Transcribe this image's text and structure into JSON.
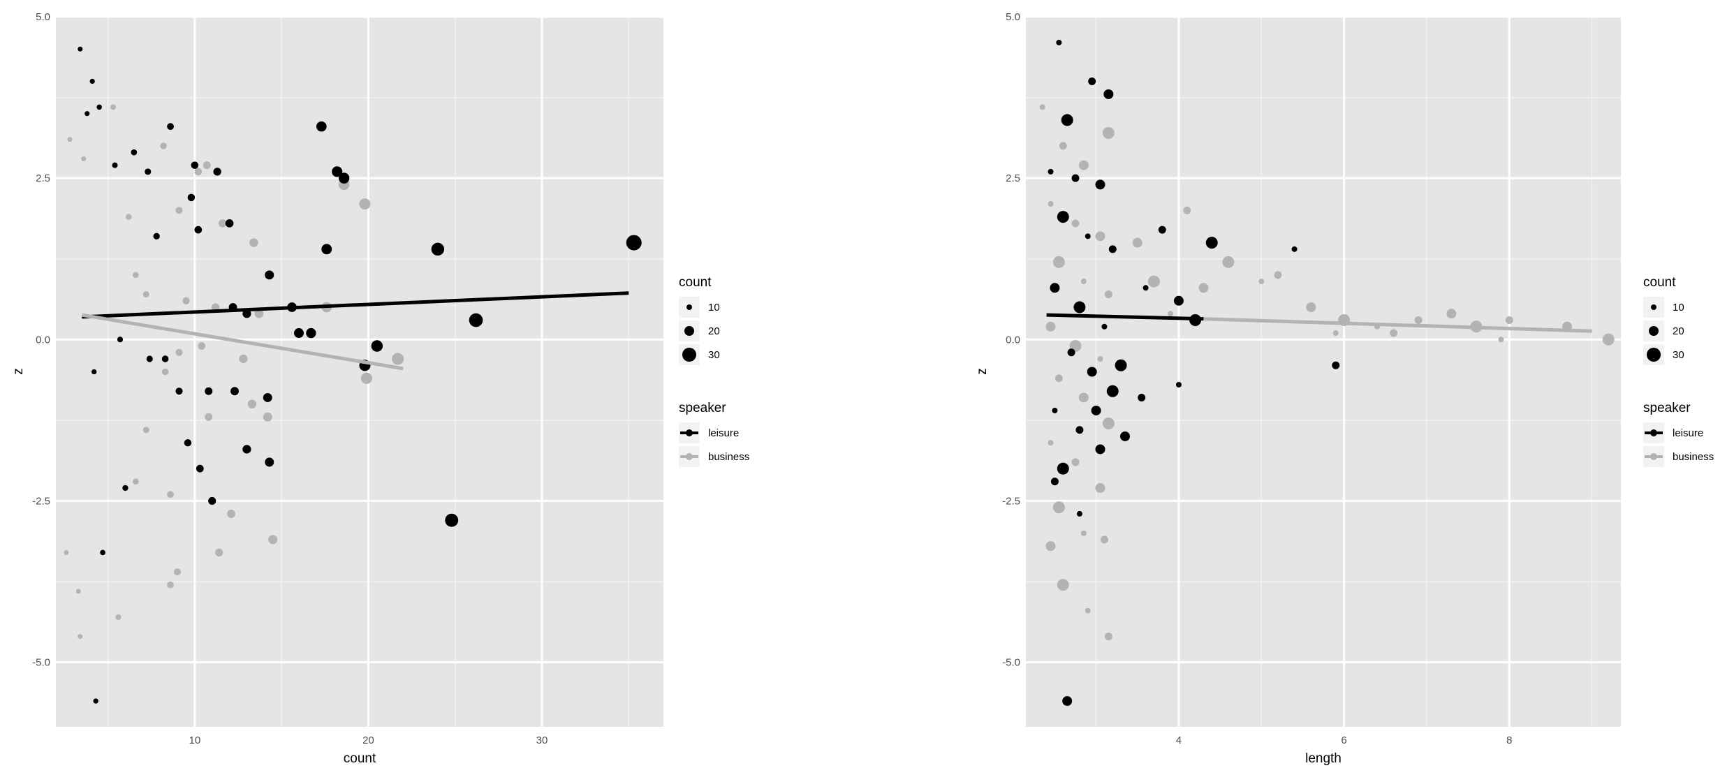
{
  "colors": {
    "leisure": "#000000",
    "business": "#b3b3b3",
    "panel": "#e5e5e5"
  },
  "legend": {
    "size_title": "count",
    "size_labels": [
      "10",
      "20",
      "30"
    ],
    "size_values": [
      10,
      20,
      30
    ],
    "color_title": "speaker",
    "color_labels": [
      "leisure",
      "business"
    ]
  },
  "chart_data": [
    {
      "type": "scatter",
      "xlabel": "count",
      "ylabel": "z",
      "xlim": [
        2.0,
        37.0
      ],
      "ylim": [
        -6.0,
        5.0
      ],
      "xticks": [
        10,
        20,
        30
      ],
      "xtick_labels": [
        "10",
        "20",
        "30"
      ],
      "yticks": [
        -5.0,
        -2.5,
        0.0,
        2.5,
        5.0
      ],
      "ytick_labels": [
        "-5.0",
        "-2.5",
        "0.0",
        "2.5",
        "5.0"
      ],
      "grid": true,
      "legend_position": "right",
      "series": [
        {
          "name": "leisure",
          "points": [
            [
              3.4,
              4.5
            ],
            [
              4.1,
              4.0
            ],
            [
              4.5,
              3.6
            ],
            [
              3.8,
              3.5
            ],
            [
              5.4,
              2.7
            ],
            [
              6.5,
              2.9
            ],
            [
              7.3,
              2.6
            ],
            [
              8.6,
              3.3
            ],
            [
              10.0,
              2.7
            ],
            [
              11.3,
              2.6
            ],
            [
              9.8,
              2.2
            ],
            [
              10.2,
              1.7
            ],
            [
              12.0,
              1.8
            ],
            [
              7.8,
              1.6
            ],
            [
              13.0,
              0.4
            ],
            [
              12.2,
              0.5
            ],
            [
              4.2,
              -0.5
            ],
            [
              5.7,
              0.0
            ],
            [
              7.4,
              -0.3
            ],
            [
              8.3,
              -0.3
            ],
            [
              9.1,
              -0.8
            ],
            [
              10.8,
              -0.8
            ],
            [
              12.3,
              -0.8
            ],
            [
              14.2,
              -0.9
            ],
            [
              11.0,
              -2.5
            ],
            [
              13.0,
              -1.7
            ],
            [
              14.3,
              -1.9
            ],
            [
              6.0,
              -2.3
            ],
            [
              4.7,
              -3.3
            ],
            [
              14.3,
              1.0
            ],
            [
              10.3,
              -2.0
            ],
            [
              9.6,
              -1.6
            ],
            [
              16.0,
              0.1
            ],
            [
              16.7,
              0.1
            ],
            [
              17.3,
              3.3
            ],
            [
              17.6,
              1.4
            ],
            [
              18.2,
              2.6
            ],
            [
              18.6,
              2.5
            ],
            [
              15.6,
              0.5
            ],
            [
              19.8,
              -0.4
            ],
            [
              20.5,
              -0.1
            ],
            [
              24.0,
              1.4
            ],
            [
              24.8,
              -2.8
            ],
            [
              26.2,
              0.3
            ],
            [
              35.3,
              1.5
            ],
            [
              4.3,
              -5.6
            ]
          ]
        },
        {
          "name": "business",
          "points": [
            [
              2.8,
              3.1
            ],
            [
              3.6,
              2.8
            ],
            [
              3.3,
              -3.9
            ],
            [
              5.3,
              3.6
            ],
            [
              6.2,
              1.9
            ],
            [
              8.2,
              3.0
            ],
            [
              9.1,
              2.0
            ],
            [
              10.2,
              2.6
            ],
            [
              10.7,
              2.7
            ],
            [
              11.6,
              1.8
            ],
            [
              13.4,
              1.5
            ],
            [
              6.6,
              1.0
            ],
            [
              7.2,
              0.7
            ],
            [
              9.5,
              0.6
            ],
            [
              11.2,
              0.5
            ],
            [
              13.7,
              0.4
            ],
            [
              8.3,
              -0.5
            ],
            [
              9.1,
              -0.2
            ],
            [
              10.4,
              -0.1
            ],
            [
              12.8,
              -0.3
            ],
            [
              13.3,
              -1.0
            ],
            [
              14.2,
              -1.2
            ],
            [
              10.8,
              -1.2
            ],
            [
              7.2,
              -1.4
            ],
            [
              6.6,
              -2.2
            ],
            [
              8.6,
              -2.4
            ],
            [
              11.4,
              -3.3
            ],
            [
              14.5,
              -3.1
            ],
            [
              9.0,
              -3.6
            ],
            [
              8.6,
              -3.8
            ],
            [
              5.6,
              -4.3
            ],
            [
              12.1,
              -2.7
            ],
            [
              2.6,
              -3.3
            ],
            [
              3.4,
              -4.6
            ],
            [
              17.6,
              0.5
            ],
            [
              18.6,
              2.4
            ],
            [
              19.8,
              2.1
            ],
            [
              19.9,
              -0.6
            ],
            [
              21.7,
              -0.3
            ]
          ]
        }
      ],
      "fit_lines": [
        {
          "name": "leisure",
          "x": [
            3.5,
            35.0
          ],
          "y": [
            0.35,
            0.72
          ]
        },
        {
          "name": "business",
          "x": [
            3.5,
            22.0
          ],
          "y": [
            0.38,
            -0.45
          ]
        }
      ]
    },
    {
      "type": "scatter",
      "xlabel": "length",
      "ylabel": "z",
      "xlim": [
        2.15,
        9.35
      ],
      "ylim": [
        -6.0,
        5.0
      ],
      "xticks": [
        4,
        6,
        8
      ],
      "xtick_labels": [
        "4",
        "6",
        "8"
      ],
      "yticks": [
        -5.0,
        -2.5,
        0.0,
        2.5,
        5.0
      ],
      "ytick_labels": [
        "-5.0",
        "-2.5",
        "0.0",
        "2.5",
        "5.0"
      ],
      "grid": true,
      "legend_position": "right",
      "series": [
        {
          "name": "leisure",
          "points": [
            [
              2.55,
              4.6
            ],
            [
              2.95,
              4.0
            ],
            [
              3.15,
              3.8
            ],
            [
              2.65,
              3.4
            ],
            [
              2.45,
              2.6
            ],
            [
              2.75,
              2.5
            ],
            [
              3.05,
              2.4
            ],
            [
              2.6,
              1.9
            ],
            [
              2.9,
              1.6
            ],
            [
              3.2,
              1.4
            ],
            [
              2.5,
              0.8
            ],
            [
              2.8,
              0.5
            ],
            [
              3.1,
              0.2
            ],
            [
              2.7,
              -0.2
            ],
            [
              2.95,
              -0.5
            ],
            [
              3.2,
              -0.8
            ],
            [
              2.5,
              -1.1
            ],
            [
              2.8,
              -1.4
            ],
            [
              3.05,
              -1.7
            ],
            [
              2.6,
              -2.0
            ],
            [
              2.8,
              -2.7
            ],
            [
              2.5,
              -2.2
            ],
            [
              3.0,
              -1.1
            ],
            [
              3.3,
              -0.4
            ],
            [
              3.6,
              0.8
            ],
            [
              3.8,
              1.7
            ],
            [
              4.0,
              0.6
            ],
            [
              4.2,
              0.3
            ],
            [
              4.0,
              -0.7
            ],
            [
              3.55,
              -0.9
            ],
            [
              3.35,
              -1.5
            ],
            [
              4.4,
              1.5
            ],
            [
              5.4,
              1.4
            ],
            [
              5.9,
              -0.4
            ],
            [
              2.65,
              -5.6
            ]
          ]
        },
        {
          "name": "business",
          "points": [
            [
              2.35,
              3.6
            ],
            [
              2.6,
              3.0
            ],
            [
              2.85,
              2.7
            ],
            [
              3.15,
              3.2
            ],
            [
              2.45,
              2.1
            ],
            [
              2.75,
              1.8
            ],
            [
              3.05,
              1.6
            ],
            [
              2.55,
              1.2
            ],
            [
              2.85,
              0.9
            ],
            [
              3.15,
              0.7
            ],
            [
              2.45,
              0.2
            ],
            [
              2.75,
              -0.1
            ],
            [
              3.05,
              -0.3
            ],
            [
              2.55,
              -0.6
            ],
            [
              2.85,
              -0.9
            ],
            [
              3.15,
              -1.3
            ],
            [
              2.45,
              -1.6
            ],
            [
              2.75,
              -1.9
            ],
            [
              3.05,
              -2.3
            ],
            [
              2.55,
              -2.6
            ],
            [
              2.85,
              -3.0
            ],
            [
              3.1,
              -3.1
            ],
            [
              2.45,
              -3.2
            ],
            [
              2.6,
              -3.8
            ],
            [
              2.9,
              -4.2
            ],
            [
              3.15,
              -4.6
            ],
            [
              3.5,
              1.5
            ],
            [
              3.7,
              0.9
            ],
            [
              3.9,
              0.4
            ],
            [
              4.1,
              2.0
            ],
            [
              4.3,
              0.8
            ],
            [
              4.6,
              1.2
            ],
            [
              5.0,
              0.9
            ],
            [
              5.2,
              1.0
            ],
            [
              5.6,
              0.5
            ],
            [
              6.0,
              0.3
            ],
            [
              6.4,
              0.2
            ],
            [
              6.9,
              0.3
            ],
            [
              7.3,
              0.4
            ],
            [
              7.6,
              0.2
            ],
            [
              7.9,
              0.0
            ],
            [
              8.0,
              0.3
            ],
            [
              8.7,
              0.2
            ],
            [
              9.2,
              0.0
            ],
            [
              5.9,
              0.1
            ],
            [
              6.6,
              0.1
            ]
          ]
        }
      ],
      "fit_lines": [
        {
          "name": "leisure",
          "x": [
            2.4,
            4.3
          ],
          "y": [
            0.38,
            0.32
          ]
        },
        {
          "name": "business",
          "x": [
            4.3,
            9.0
          ],
          "y": [
            0.32,
            0.13
          ]
        }
      ]
    }
  ]
}
